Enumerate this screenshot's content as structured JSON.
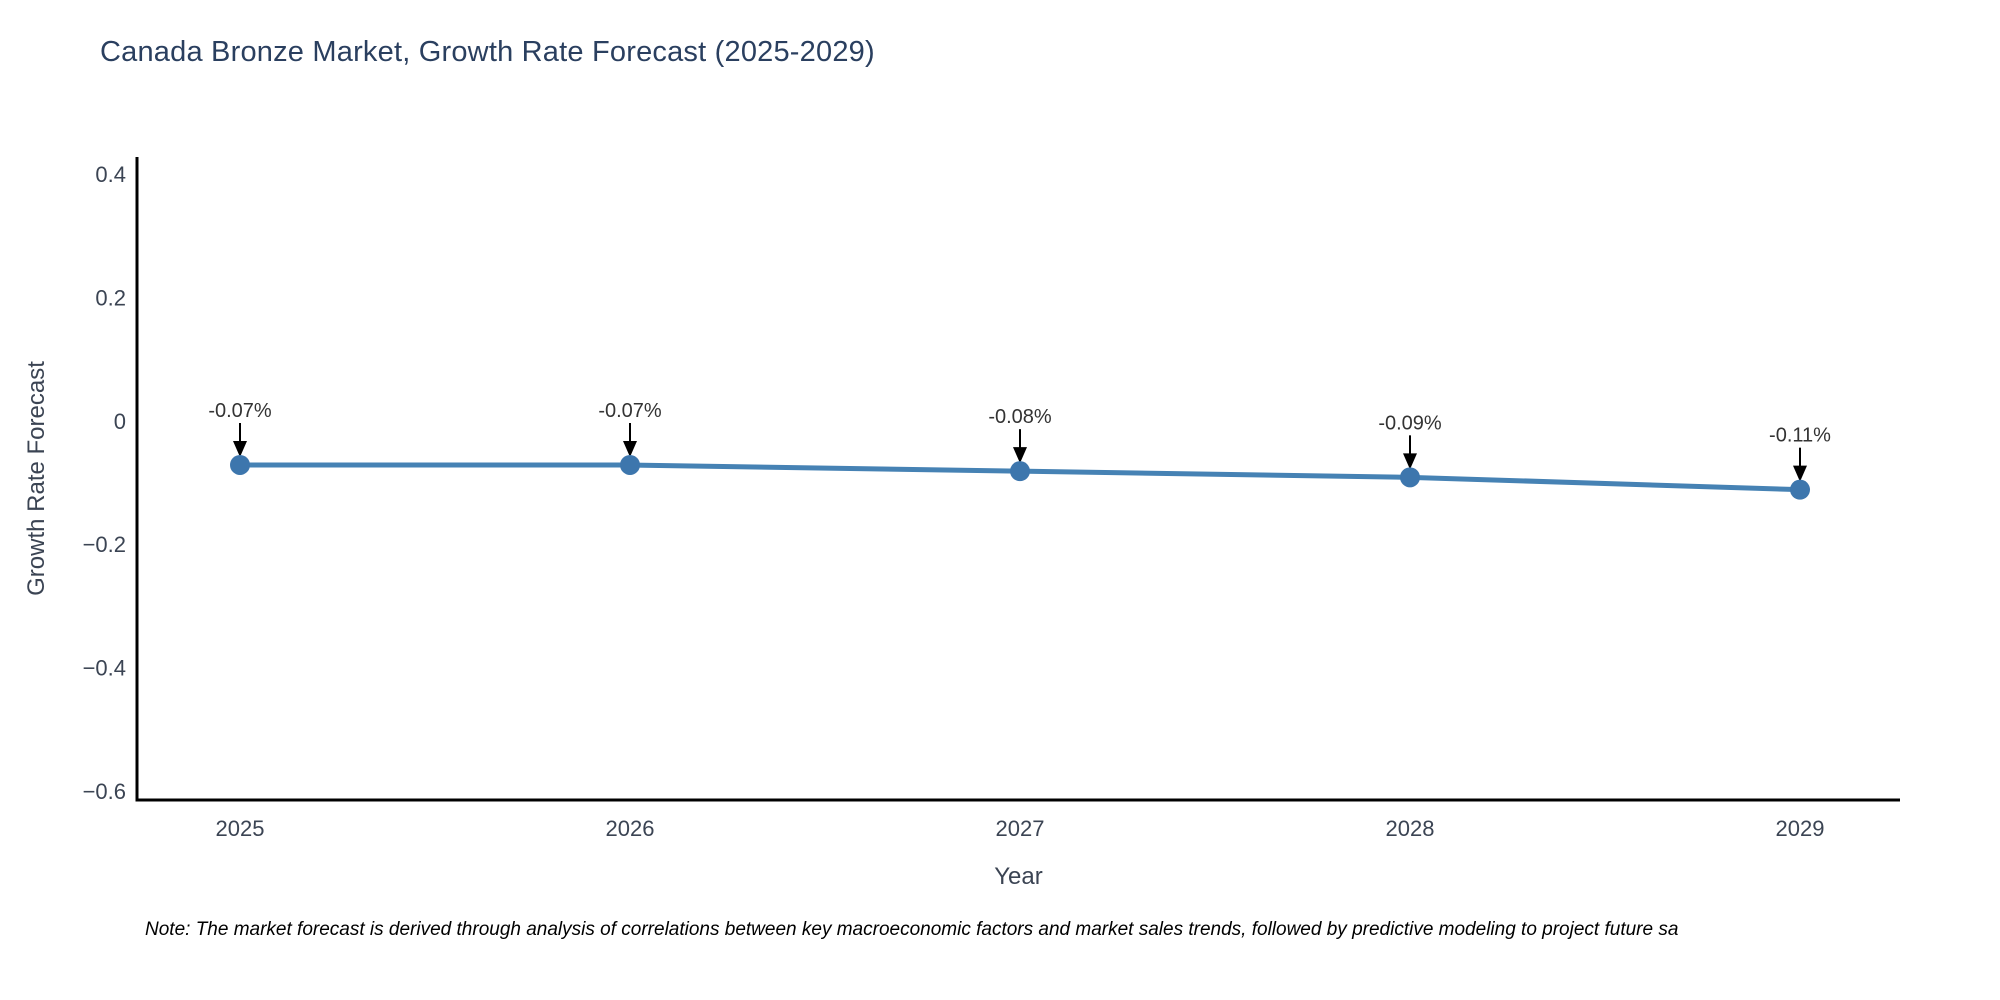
{
  "title": "Canada Bronze Market, Growth Rate Forecast (2025-2029)",
  "note": "Note: The market forecast is derived through analysis of correlations between key macroeconomic factors and market sales trends, followed by predictive modeling to project future sa",
  "chart_data": {
    "type": "line",
    "title": "Canada Bronze Market, Growth Rate Forecast (2025-2029)",
    "xlabel": "Year",
    "ylabel": "Growth Rate Forecast",
    "x": [
      2025,
      2026,
      2027,
      2028,
      2029
    ],
    "values": [
      -0.07,
      -0.07,
      -0.08,
      -0.09,
      -0.11
    ],
    "point_labels": [
      "-0.07%",
      "-0.07%",
      "-0.08%",
      "-0.09%",
      "-0.11%"
    ],
    "xtick_labels": [
      "2025",
      "2026",
      "2027",
      "2028",
      "2029"
    ],
    "yticks": [
      0.4,
      0.2,
      0,
      -0.2,
      -0.4,
      -0.6
    ],
    "ytick_labels": [
      "0.4",
      "0.2",
      "0",
      "−0.2",
      "−0.4",
      "−0.6"
    ],
    "ylim": [
      -0.615,
      0.43
    ],
    "xlim": [
      2024.74,
      2029.26
    ],
    "grid": false,
    "legend": "none",
    "colors": {
      "line": "#4682b4",
      "marker": "#3d76ad",
      "axis": "#000000",
      "tick_text": "#3b4453",
      "title_text": "#2a3f5f",
      "annotation_text": "#333333",
      "annotation_arrow": "#000000"
    }
  }
}
